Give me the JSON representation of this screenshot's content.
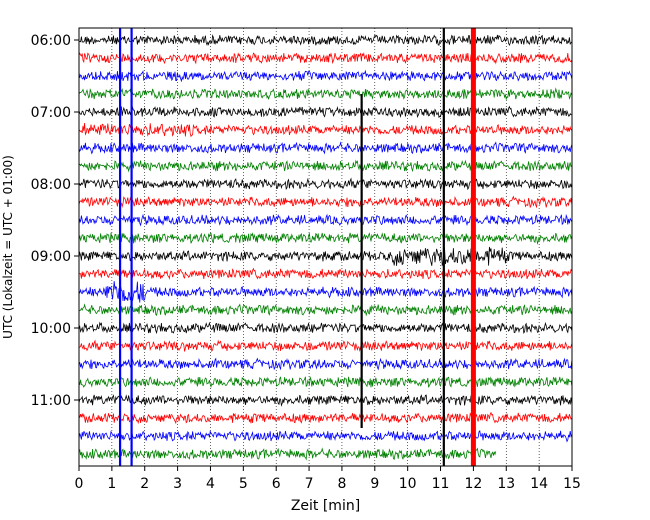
{
  "chart_data": {
    "type": "line",
    "title": "",
    "xlabel": "Zeit  [min]",
    "ylabel": "UTC (Lokalzeit = UTC + 01:00)",
    "xlim": [
      0,
      15
    ],
    "x_ticks": [
      0,
      1,
      2,
      3,
      4,
      5,
      6,
      7,
      8,
      9,
      10,
      11,
      12,
      13,
      14,
      15
    ],
    "y_ticks": [
      {
        "label": "06:00",
        "trace": 0
      },
      {
        "label": "07:00",
        "trace": 4
      },
      {
        "label": "08:00",
        "trace": 8
      },
      {
        "label": "09:00",
        "trace": 12
      },
      {
        "label": "10:00",
        "trace": 16
      },
      {
        "label": "11:00",
        "trace": 20
      }
    ],
    "grid": true,
    "trace_interval_minutes": 15,
    "trace_count": 24,
    "last_trace_end_min": 12.7,
    "color_cycle": [
      "#000000",
      "#ff0000",
      "#0000ff",
      "#008000"
    ],
    "events": [
      {
        "x_min": 1.25,
        "color": "#0000ff",
        "span": "all"
      },
      {
        "x_min": 1.6,
        "color": "#0000ff",
        "span": "all"
      },
      {
        "x_min": 8.6,
        "color": "#000000",
        "span": "partial"
      },
      {
        "x_min": 11.1,
        "color": "#000000",
        "span": "all"
      },
      {
        "x_min": 12.0,
        "color": "#ff0000",
        "span": "all"
      }
    ]
  }
}
